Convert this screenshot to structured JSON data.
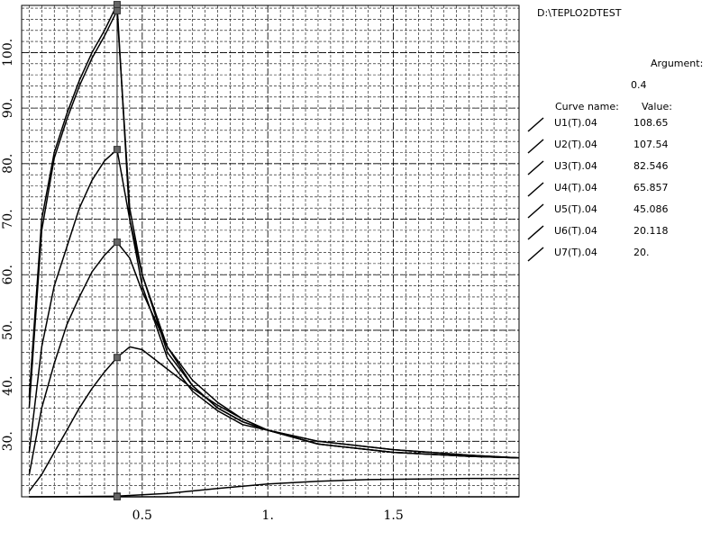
{
  "header": {
    "path": "D:\\TEPLO2DTEST"
  },
  "panel": {
    "argument_label": "Argument:",
    "argument_value": "0.4",
    "curve_name_header": "Curve name:",
    "value_header": "Value:"
  },
  "legend": [
    {
      "name": "U1(T).04",
      "value": "108.65"
    },
    {
      "name": "U2(T).04",
      "value": "107.54"
    },
    {
      "name": "U3(T).04",
      "value": "82.546"
    },
    {
      "name": "U4(T).04",
      "value": "65.857"
    },
    {
      "name": "U5(T).04",
      "value": "45.086"
    },
    {
      "name": "U6(T).04",
      "value": "20.118"
    },
    {
      "name": "U7(T).04",
      "value": "20."
    }
  ],
  "chart_data": {
    "type": "line",
    "title": "",
    "xlabel": "",
    "ylabel": "",
    "xlim": [
      0.02,
      2.0
    ],
    "ylim": [
      20,
      108.5
    ],
    "x_ticks": [
      0.5,
      1.0,
      1.5
    ],
    "x_tick_labels": [
      "0.5",
      "1.",
      "1.5"
    ],
    "y_ticks": [
      30,
      40,
      50,
      60,
      70,
      80,
      90,
      100
    ],
    "y_tick_labels": [
      "30.",
      "40.",
      "50.",
      "60.",
      "70.",
      "80.",
      "90.",
      "100."
    ],
    "grid": true,
    "cursor_x": 0.4,
    "series": [
      {
        "name": "U1(T).04",
        "x": [
          0.05,
          0.1,
          0.15,
          0.2,
          0.25,
          0.3,
          0.35,
          0.4,
          0.45,
          0.5,
          0.6,
          0.7,
          0.8,
          0.9,
          1.0,
          1.2,
          1.5,
          1.8,
          2.0
        ],
        "y": [
          38,
          70,
          82,
          89,
          95,
          100,
          104,
          108.65,
          70,
          58,
          45,
          39,
          35.5,
          33,
          32,
          30,
          28.5,
          27.5,
          27
        ]
      },
      {
        "name": "U2(T).04",
        "x": [
          0.05,
          0.1,
          0.15,
          0.2,
          0.25,
          0.3,
          0.35,
          0.4,
          0.45,
          0.5,
          0.6,
          0.7,
          0.8,
          0.9,
          1.0,
          1.2,
          1.5,
          1.8,
          2.0
        ],
        "y": [
          36,
          68,
          81,
          88,
          94,
          99,
          103,
          107.54,
          72,
          60,
          46,
          40,
          36,
          33.5,
          32,
          30,
          28.5,
          27.5,
          27
        ]
      },
      {
        "name": "U3(T).04",
        "x": [
          0.05,
          0.1,
          0.15,
          0.2,
          0.25,
          0.3,
          0.35,
          0.4,
          0.45,
          0.5,
          0.6,
          0.7,
          0.8,
          0.9,
          1.0,
          1.2,
          1.5,
          1.8,
          2.0
        ],
        "y": [
          28,
          47,
          58,
          65,
          72,
          77,
          80.5,
          82.546,
          70,
          60,
          47,
          40,
          36,
          33.5,
          32,
          29.5,
          28,
          27.3,
          27
        ]
      },
      {
        "name": "U4(T).04",
        "x": [
          0.05,
          0.1,
          0.15,
          0.2,
          0.25,
          0.3,
          0.35,
          0.4,
          0.45,
          0.5,
          0.6,
          0.7,
          0.8,
          0.9,
          1.0,
          1.2,
          1.5,
          1.8,
          2.0
        ],
        "y": [
          24,
          36,
          44,
          51,
          56,
          60.5,
          63.5,
          65.857,
          63,
          57,
          47,
          41,
          37,
          34,
          32,
          29.5,
          28,
          27.3,
          27
        ]
      },
      {
        "name": "U5(T).04",
        "x": [
          0.05,
          0.1,
          0.15,
          0.2,
          0.25,
          0.3,
          0.35,
          0.4,
          0.45,
          0.5,
          0.6,
          0.7,
          0.8,
          0.9,
          1.0,
          1.2,
          1.5,
          1.8,
          2.0
        ],
        "y": [
          21,
          24,
          28,
          32,
          36,
          39.5,
          42.5,
          45.086,
          47,
          46.5,
          43,
          39.5,
          36.5,
          34,
          32,
          29.5,
          28,
          27.3,
          27
        ]
      },
      {
        "name": "U6(T).04",
        "x": [
          0.05,
          0.2,
          0.4,
          0.6,
          0.8,
          1.0,
          1.2,
          1.4,
          1.6,
          1.8,
          2.0
        ],
        "y": [
          20,
          20.05,
          20.118,
          20.6,
          21.5,
          22.3,
          22.8,
          23.1,
          23.2,
          23.3,
          23.3
        ]
      },
      {
        "name": "U7(T).04",
        "x": [
          0.05,
          0.4,
          1.0,
          2.0
        ],
        "y": [
          20,
          20,
          20,
          20
        ]
      }
    ]
  }
}
